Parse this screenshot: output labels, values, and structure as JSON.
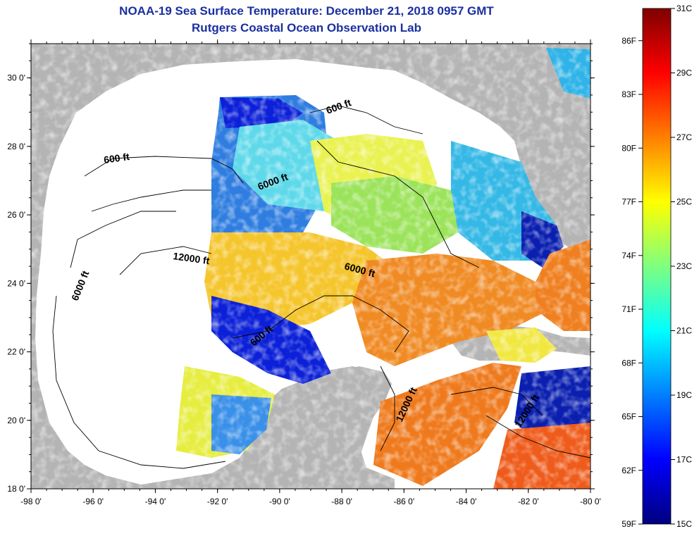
{
  "title": "NOAA-19 Sea Surface Temperature:  December 21, 2018 0957 GMT",
  "subtitle": "Rutgers Coastal Ocean Observation Lab",
  "map": {
    "lat_ticks": [
      "18 0'",
      "20 0'",
      "22 0'",
      "24 0'",
      "26 0'",
      "28 0'",
      "30 0'"
    ],
    "lon_ticks": [
      "-98 0'",
      "-96 0'",
      "-94 0'",
      "-92 0'",
      "-90 0'",
      "-88 0'",
      "-86 0'",
      "-84 0'",
      "-82 0'",
      "-80 0'"
    ],
    "lat_range": [
      18,
      31
    ],
    "lon_range": [
      -98,
      -80
    ],
    "contour_labels": [
      "600 ft",
      "600 ft",
      "6000 ft",
      "12000 ft",
      "6000 ft",
      "6000 ft",
      "600 ft",
      "12000 ft",
      "12000 ft"
    ],
    "colors": {
      "land": "#b4b4b4",
      "no_data": "#ffffff"
    }
  },
  "colorbar": {
    "fahrenheit": [
      "86F",
      "83F",
      "80F",
      "77F",
      "74F",
      "71F",
      "68F",
      "65F",
      "62F",
      "59F"
    ],
    "celsius": [
      "31C",
      "29C",
      "27C",
      "25C",
      "23C",
      "21C",
      "19C",
      "17C",
      "15C"
    ],
    "range_c": [
      15,
      31
    ],
    "colors": [
      "#00007f",
      "#0000ff",
      "#007fff",
      "#00ffff",
      "#7fff7f",
      "#ffff00",
      "#ff7f00",
      "#ff0000",
      "#7f0000"
    ]
  }
}
